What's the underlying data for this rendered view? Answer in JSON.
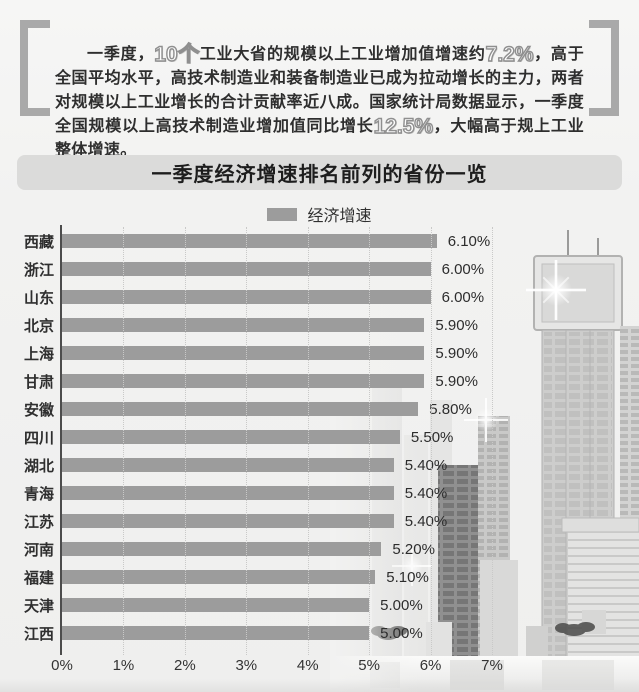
{
  "colors": {
    "bar": "#9c9c9c",
    "bracket": "#a9a9a9",
    "axis_line": "#4c4c4c",
    "gridline": "#c9c9c8",
    "text_dark": "#2e2e2e",
    "title_bar_bg": "#dbdbda",
    "page_bg": "#f2f2f1",
    "hollow_stroke": "#8f8f8f"
  },
  "intro": {
    "segments": [
      {
        "style": "normal",
        "text": "一季度，"
      },
      {
        "style": "hollow",
        "text": "10个"
      },
      {
        "style": "normal",
        "text": "工业大省的规模以上工业增加值增速约"
      },
      {
        "style": "hollow",
        "text": "7.2%"
      },
      {
        "style": "normal",
        "text": "，高于全国平均水平，高技术制造业和装备制造业已成为拉动增长的主力，两者对规模以上工业增长的合计贡献率近八成。国家统计局数据显示，一季度全国规模以上高技术制造业增加值同比增长"
      },
      {
        "style": "hollow",
        "text": "12.5%"
      },
      {
        "style": "normal",
        "text": "，大幅高于规上工业整体增速。"
      }
    ]
  },
  "chart_data": {
    "type": "bar",
    "orientation": "horizontal",
    "title": "一季度经济增速排名前列的省份一览",
    "legend": [
      "经济增速"
    ],
    "legend_position": "top-center",
    "xlabel": "",
    "ylabel": "",
    "xlim": [
      0,
      7
    ],
    "grid": "dotted-vertical",
    "rows": [
      {
        "label": "西藏",
        "value": 6.1,
        "display": "6.10%"
      },
      {
        "label": "浙江",
        "value": 6.0,
        "display": "6.00%"
      },
      {
        "label": "山东",
        "value": 6.0,
        "display": "6.00%"
      },
      {
        "label": "北京",
        "value": 5.9,
        "display": "5.90%"
      },
      {
        "label": "上海",
        "value": 5.9,
        "display": "5.90%"
      },
      {
        "label": "甘肃",
        "value": 5.9,
        "display": "5.90%"
      },
      {
        "label": "安徽",
        "value": 5.8,
        "display": "5.80%"
      },
      {
        "label": "四川",
        "value": 5.5,
        "display": "5.50%"
      },
      {
        "label": "湖北",
        "value": 5.4,
        "display": "5.40%"
      },
      {
        "label": "青海",
        "value": 5.4,
        "display": "5.40%"
      },
      {
        "label": "江苏",
        "value": 5.4,
        "display": "5.40%"
      },
      {
        "label": "河南",
        "value": 5.2,
        "display": "5.20%"
      },
      {
        "label": "福建",
        "value": 5.1,
        "display": "5.10%"
      },
      {
        "label": "天津",
        "value": 5.0,
        "display": "5.00%"
      },
      {
        "label": "江西",
        "value": 5.0,
        "display": "5.00%"
      }
    ],
    "ticks": [
      {
        "v": 0,
        "label": "0%"
      },
      {
        "v": 1,
        "label": "1%"
      },
      {
        "v": 2,
        "label": "2%"
      },
      {
        "v": 3,
        "label": "3%"
      },
      {
        "v": 4,
        "label": "4%"
      },
      {
        "v": 5,
        "label": "5%"
      },
      {
        "v": 6,
        "label": "6%"
      },
      {
        "v": 7,
        "label": "7%"
      }
    ],
    "gridlines": [
      {
        "v": 1
      },
      {
        "v": 2
      },
      {
        "v": 3
      },
      {
        "v": 4
      },
      {
        "v": 5
      },
      {
        "v": 6
      },
      {
        "v": 7
      }
    ]
  }
}
